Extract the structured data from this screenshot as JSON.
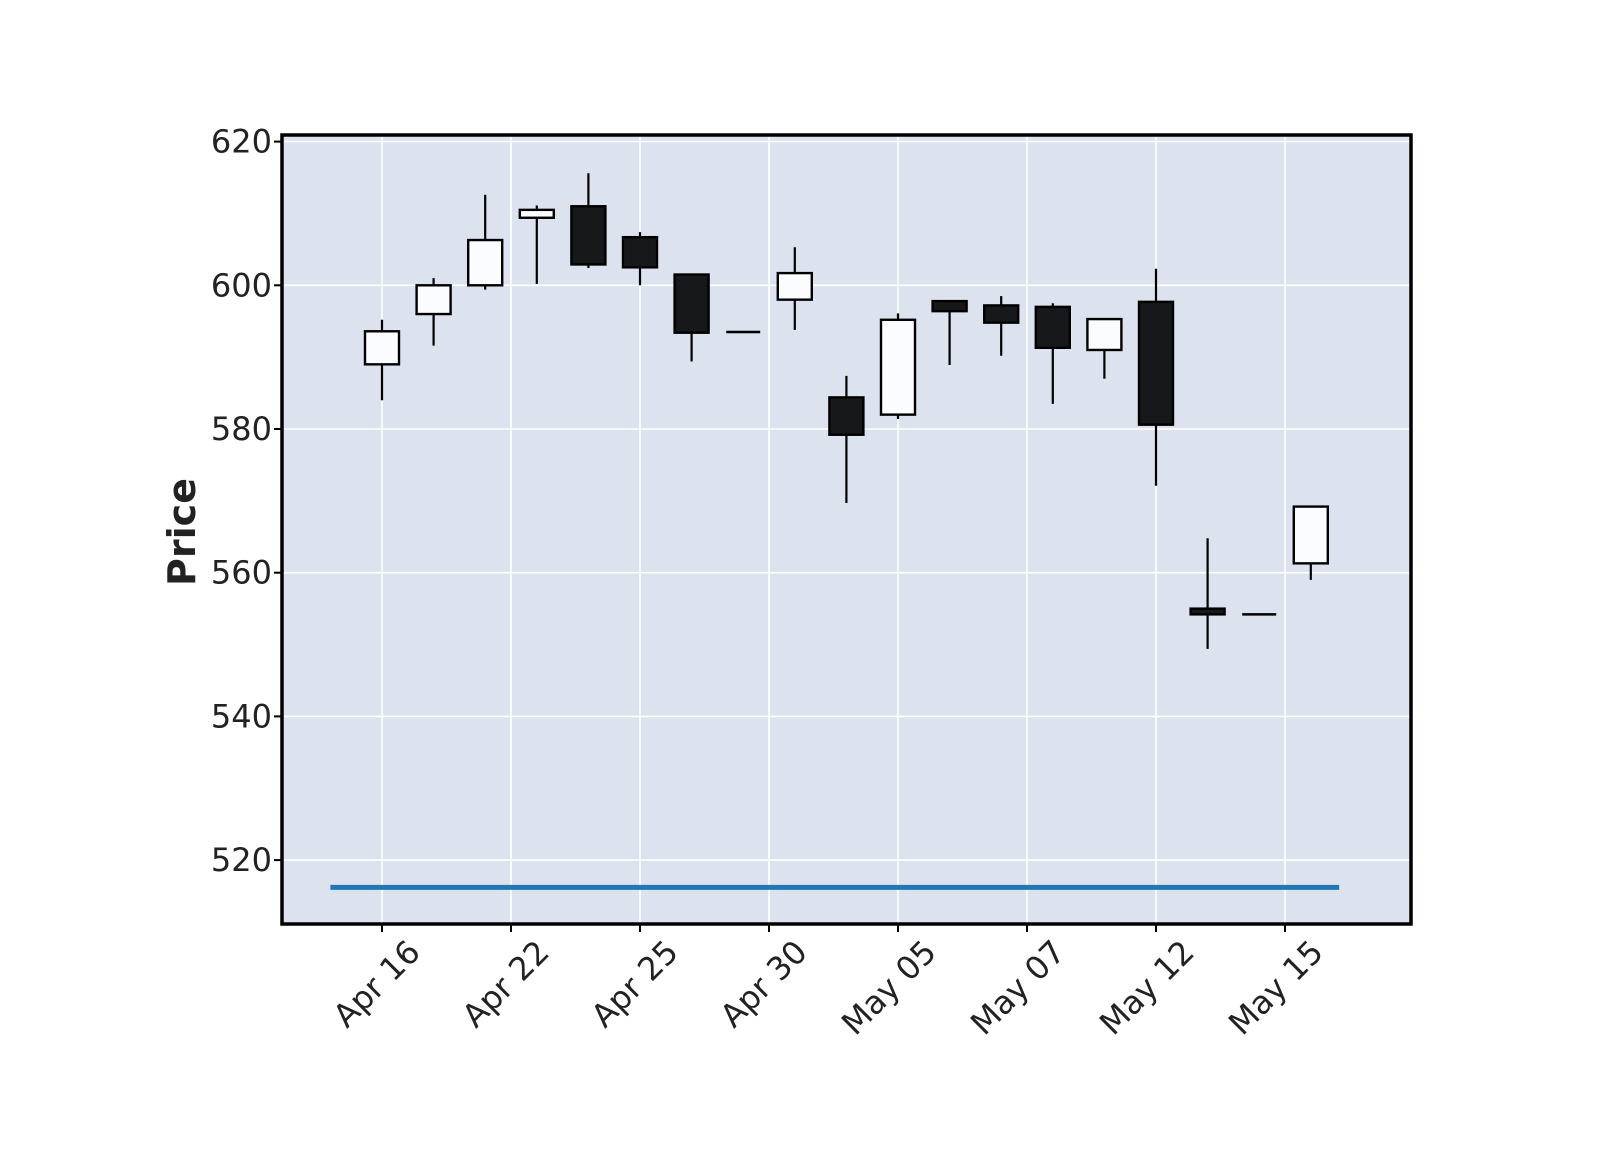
{
  "chart_data": {
    "type": "candlestick",
    "title": "",
    "xlabel": "",
    "ylabel": "Price",
    "ylim": [
      511,
      620.7
    ],
    "y_ticks": [
      520,
      540,
      560,
      580,
      600,
      620
    ],
    "x_tick_labels": [
      {
        "label": "Apr 16",
        "index": 0
      },
      {
        "label": "Apr 22",
        "index": 2.5
      },
      {
        "label": "Apr 25",
        "index": 5
      },
      {
        "label": "Apr 30",
        "index": 7.5
      },
      {
        "label": "May 05",
        "index": 10
      },
      {
        "label": "May 07",
        "index": 12.5
      },
      {
        "label": "May 12",
        "index": 15
      },
      {
        "label": "May 15",
        "index": 17.5
      }
    ],
    "grid": true,
    "colors": {
      "background": "#dce2ee",
      "grid": "#ffffff",
      "up_fill": "#fafcff",
      "down_fill": "#17181a",
      "edge": "#000000",
      "reference_line": "#2077b4"
    },
    "candles": [
      {
        "open": 589.0,
        "high": 595.2,
        "low": 584.0,
        "close": 593.6
      },
      {
        "open": 596.0,
        "high": 601.0,
        "low": 591.6,
        "close": 600.0
      },
      {
        "open": 600.0,
        "high": 612.6,
        "low": 599.4,
        "close": 606.3
      },
      {
        "open": 609.4,
        "high": 611.1,
        "low": 600.2,
        "close": 610.5
      },
      {
        "open": 611.0,
        "high": 615.6,
        "low": 602.4,
        "close": 602.9
      },
      {
        "open": 606.7,
        "high": 607.4,
        "low": 600.0,
        "close": 602.5
      },
      {
        "open": 601.5,
        "high": 601.5,
        "low": 589.4,
        "close": 593.4
      },
      {
        "open": 593.5,
        "high": 593.5,
        "low": 593.5,
        "close": 593.5
      },
      {
        "open": 598.0,
        "high": 605.3,
        "low": 593.8,
        "close": 601.7
      },
      {
        "open": 584.4,
        "high": 587.4,
        "low": 569.7,
        "close": 579.2
      },
      {
        "open": 582.0,
        "high": 596.1,
        "low": 581.4,
        "close": 595.2
      },
      {
        "open": 597.8,
        "high": 597.8,
        "low": 588.9,
        "close": 596.4
      },
      {
        "open": 597.2,
        "high": 598.5,
        "low": 590.2,
        "close": 594.8
      },
      {
        "open": 597.0,
        "high": 597.5,
        "low": 583.5,
        "close": 591.3
      },
      {
        "open": 591.0,
        "high": 595.4,
        "low": 587.0,
        "close": 595.3
      },
      {
        "open": 597.7,
        "high": 602.3,
        "low": 572.1,
        "close": 580.6
      },
      {
        "open": 555.0,
        "high": 564.8,
        "low": 549.4,
        "close": 554.2
      },
      {
        "open": 554.2,
        "high": 554.2,
        "low": 554.2,
        "close": 554.2
      },
      {
        "open": 561.3,
        "high": 569.3,
        "low": 559.0,
        "close": 569.2
      }
    ],
    "reference_line": {
      "value": 516.2,
      "x_from": -1,
      "x_to": 19
    }
  }
}
